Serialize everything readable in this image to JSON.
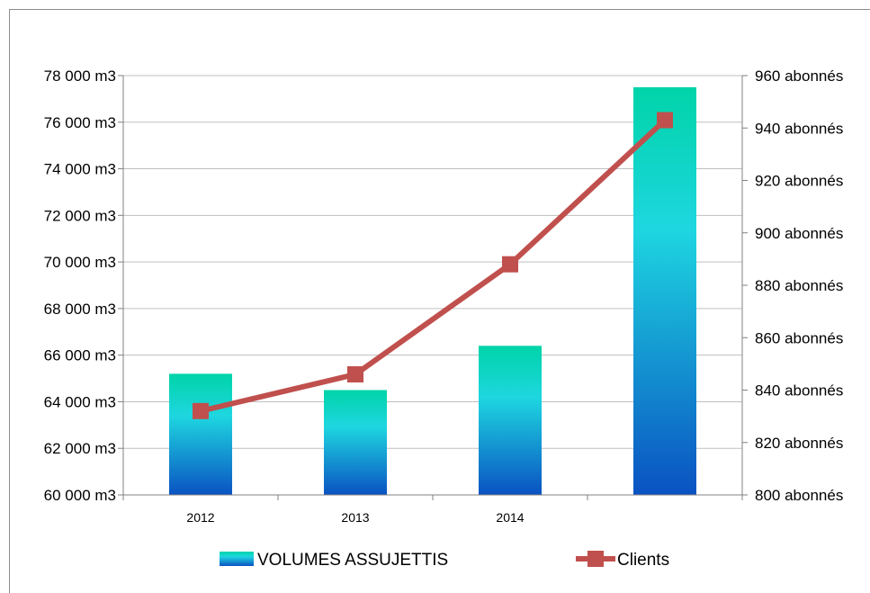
{
  "chart_data": {
    "type": "bar+line",
    "categories": [
      "2012",
      "2013",
      "2014",
      ""
    ],
    "series": [
      {
        "name": "VOLUMES ASSUJETTIS",
        "type": "bar",
        "axis": "left",
        "values": [
          65200,
          64500,
          66400,
          77500
        ]
      },
      {
        "name": "Clients",
        "type": "line",
        "axis": "right",
        "values": [
          832,
          846,
          888,
          943
        ]
      }
    ],
    "y_left": {
      "min": 60000,
      "max": 78000,
      "step": 2000,
      "tick_labels": [
        "60 000 m3",
        "62 000 m3",
        "64 000 m3",
        "66 000 m3",
        "68 000 m3",
        "70 000 m3",
        "72 000 m3",
        "74 000 m3",
        "76 000 m3",
        "78 000 m3"
      ]
    },
    "y_right": {
      "min": 800,
      "max": 960,
      "step": 20,
      "tick_labels": [
        "800 abonnés",
        "820 abonnés",
        "840 abonnés",
        "860 abonnés",
        "880 abonnés",
        "900 abonnés",
        "920 abonnés",
        "940 abonnés",
        "960 abonnés"
      ]
    },
    "grid": true,
    "legend_position": "bottom",
    "colors": {
      "bar_top": "#00d4a8",
      "bar_mid": "#1ed6e0",
      "bar_bottom": "#0a52c2",
      "line": "#c0504d",
      "grid": "#bfbfbf",
      "axis": "#808080"
    }
  }
}
